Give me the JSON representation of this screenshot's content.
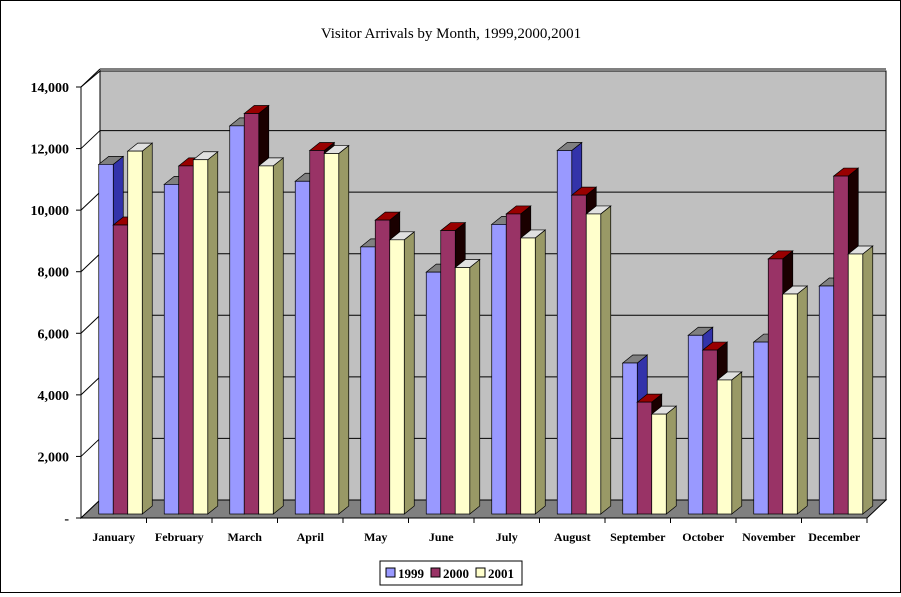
{
  "chart_data": {
    "type": "bar",
    "title": "Visitor Arrivals by Month, 1999,2000,2001",
    "xlabel": "",
    "ylabel": "",
    "ylim": [
      0,
      14000
    ],
    "y_ticks": [
      "-",
      "2,000",
      "4,000",
      "6,000",
      "8,000",
      "10,000",
      "12,000",
      "14,000"
    ],
    "y_tick_values": [
      0,
      2000,
      4000,
      6000,
      8000,
      10000,
      12000,
      14000
    ],
    "grid": true,
    "legend_position": "bottom",
    "categories": [
      "January",
      "February",
      "March",
      "April",
      "May",
      "June",
      "July",
      "August",
      "September",
      "October",
      "November",
      "December"
    ],
    "series": [
      {
        "name": "1999",
        "color": "#9999FF",
        "side": "#3333AA",
        "top": "#808080",
        "values": [
          11450,
          10800,
          12700,
          10900,
          8770,
          7950,
          9500,
          11900,
          5000,
          5900,
          5680,
          7500
        ]
      },
      {
        "name": "2000",
        "color": "#993366",
        "side": "#1A0000",
        "top": "#990000",
        "values": [
          9480,
          11400,
          13100,
          11900,
          9640,
          9300,
          9840,
          10450,
          3730,
          5420,
          8380,
          11070
        ]
      },
      {
        "name": "2001",
        "color": "#FFFFCC",
        "side": "#999966",
        "top": "#E0E0E0",
        "values": [
          11880,
          11600,
          11400,
          11800,
          9000,
          8100,
          9060,
          9840,
          3340,
          4450,
          7240,
          8540
        ]
      }
    ]
  }
}
